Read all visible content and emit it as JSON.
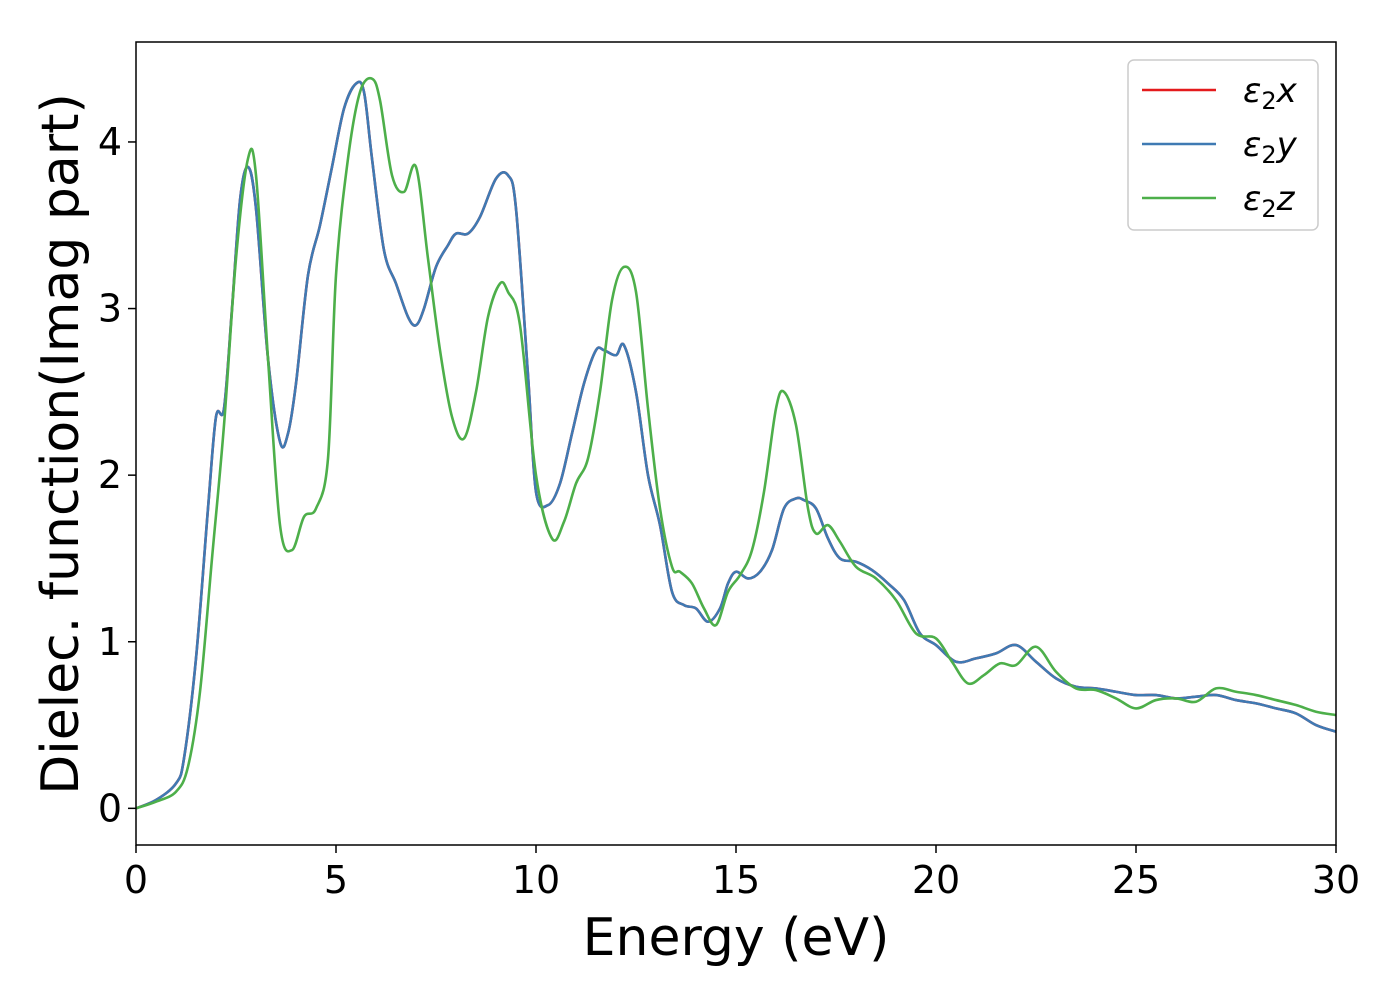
{
  "chart_data": {
    "type": "line",
    "xlabel": "Energy (eV)",
    "ylabel": "Dielec. function(Imag part)",
    "xlim": [
      0,
      30
    ],
    "ylim": [
      -0.22,
      4.6
    ],
    "xticks": [
      0,
      5,
      10,
      15,
      20,
      25,
      30
    ],
    "yticks": [
      0,
      1,
      2,
      3,
      4
    ],
    "grid": false,
    "legend_position": "top-right",
    "series": [
      {
        "name": "ε2x",
        "color": "#e41a1c",
        "x": [
          0,
          0.5,
          1.0,
          1.2,
          1.5,
          1.8,
          2.0,
          2.2,
          2.4,
          2.6,
          2.8,
          3.0,
          3.3,
          3.6,
          3.8,
          4.0,
          4.3,
          4.6,
          4.9,
          5.2,
          5.5,
          5.7,
          5.9,
          6.2,
          6.5,
          6.8,
          7.0,
          7.2,
          7.5,
          7.8,
          8.0,
          8.3,
          8.6,
          9.0,
          9.3,
          9.5,
          9.8,
          10.0,
          10.3,
          10.6,
          10.9,
          11.2,
          11.5,
          11.7,
          12.0,
          12.2,
          12.5,
          12.8,
          13.1,
          13.4,
          13.7,
          14.0,
          14.3,
          14.6,
          14.8,
          15.0,
          15.3,
          15.6,
          15.9,
          16.2,
          16.5,
          16.7,
          17.0,
          17.3,
          17.6,
          18.0,
          18.4,
          18.8,
          19.2,
          19.6,
          20.0,
          20.5,
          21.0,
          21.5,
          22.0,
          22.5,
          23.0,
          23.5,
          24.0,
          24.5,
          25.0,
          25.5,
          26.0,
          26.5,
          27.0,
          27.5,
          28.0,
          28.5,
          29.0,
          29.5,
          30.0
        ],
        "values": [
          0.0,
          0.05,
          0.15,
          0.3,
          0.9,
          1.8,
          2.35,
          2.4,
          3.0,
          3.65,
          3.85,
          3.6,
          2.7,
          2.2,
          2.25,
          2.55,
          3.2,
          3.5,
          3.85,
          4.2,
          4.35,
          4.3,
          3.9,
          3.35,
          3.15,
          2.95,
          2.9,
          3.0,
          3.25,
          3.38,
          3.45,
          3.45,
          3.55,
          3.78,
          3.8,
          3.6,
          2.6,
          1.9,
          1.82,
          1.95,
          2.25,
          2.55,
          2.75,
          2.75,
          2.72,
          2.78,
          2.5,
          2.0,
          1.7,
          1.3,
          1.22,
          1.2,
          1.12,
          1.2,
          1.35,
          1.42,
          1.38,
          1.42,
          1.55,
          1.8,
          1.86,
          1.85,
          1.8,
          1.62,
          1.5,
          1.48,
          1.43,
          1.35,
          1.25,
          1.05,
          0.98,
          0.88,
          0.9,
          0.93,
          0.98,
          0.88,
          0.78,
          0.73,
          0.72,
          0.7,
          0.68,
          0.68,
          0.66,
          0.67,
          0.68,
          0.65,
          0.63,
          0.6,
          0.57,
          0.5,
          0.46
        ]
      },
      {
        "name": "ε2y",
        "color": "#3f7ab3",
        "x": [
          0,
          0.5,
          1.0,
          1.2,
          1.5,
          1.8,
          2.0,
          2.2,
          2.4,
          2.6,
          2.8,
          3.0,
          3.3,
          3.6,
          3.8,
          4.0,
          4.3,
          4.6,
          4.9,
          5.2,
          5.5,
          5.7,
          5.9,
          6.2,
          6.5,
          6.8,
          7.0,
          7.2,
          7.5,
          7.8,
          8.0,
          8.3,
          8.6,
          9.0,
          9.3,
          9.5,
          9.8,
          10.0,
          10.3,
          10.6,
          10.9,
          11.2,
          11.5,
          11.7,
          12.0,
          12.2,
          12.5,
          12.8,
          13.1,
          13.4,
          13.7,
          14.0,
          14.3,
          14.6,
          14.8,
          15.0,
          15.3,
          15.6,
          15.9,
          16.2,
          16.5,
          16.7,
          17.0,
          17.3,
          17.6,
          18.0,
          18.4,
          18.8,
          19.2,
          19.6,
          20.0,
          20.5,
          21.0,
          21.5,
          22.0,
          22.5,
          23.0,
          23.5,
          24.0,
          24.5,
          25.0,
          25.5,
          26.0,
          26.5,
          27.0,
          27.5,
          28.0,
          28.5,
          29.0,
          29.5,
          30.0
        ],
        "values": [
          0.0,
          0.05,
          0.15,
          0.3,
          0.9,
          1.8,
          2.35,
          2.4,
          3.0,
          3.65,
          3.85,
          3.6,
          2.7,
          2.2,
          2.25,
          2.55,
          3.2,
          3.5,
          3.85,
          4.2,
          4.35,
          4.3,
          3.9,
          3.35,
          3.15,
          2.95,
          2.9,
          3.0,
          3.25,
          3.38,
          3.45,
          3.45,
          3.55,
          3.78,
          3.8,
          3.6,
          2.6,
          1.9,
          1.82,
          1.95,
          2.25,
          2.55,
          2.75,
          2.75,
          2.72,
          2.78,
          2.5,
          2.0,
          1.7,
          1.3,
          1.22,
          1.2,
          1.12,
          1.2,
          1.35,
          1.42,
          1.38,
          1.42,
          1.55,
          1.8,
          1.86,
          1.85,
          1.8,
          1.62,
          1.5,
          1.48,
          1.43,
          1.35,
          1.25,
          1.05,
          0.98,
          0.88,
          0.9,
          0.93,
          0.98,
          0.88,
          0.78,
          0.73,
          0.72,
          0.7,
          0.68,
          0.68,
          0.66,
          0.67,
          0.68,
          0.65,
          0.63,
          0.6,
          0.57,
          0.5,
          0.46
        ]
      },
      {
        "name": "ε2z",
        "color": "#4daf4a",
        "x": [
          0,
          0.5,
          1.0,
          1.3,
          1.6,
          1.9,
          2.2,
          2.5,
          2.8,
          3.0,
          3.3,
          3.6,
          3.9,
          4.2,
          4.5,
          4.8,
          5.0,
          5.3,
          5.6,
          5.9,
          6.1,
          6.4,
          6.7,
          7.0,
          7.3,
          7.6,
          7.9,
          8.2,
          8.5,
          8.8,
          9.1,
          9.3,
          9.6,
          10.0,
          10.4,
          10.7,
          11.0,
          11.3,
          11.6,
          11.9,
          12.2,
          12.5,
          12.8,
          13.1,
          13.4,
          13.6,
          13.9,
          14.2,
          14.5,
          14.8,
          15.1,
          15.4,
          15.7,
          16.0,
          16.2,
          16.5,
          16.8,
          17.0,
          17.3,
          17.6,
          18.0,
          18.5,
          19.0,
          19.5,
          20.0,
          20.4,
          20.8,
          21.2,
          21.6,
          22.0,
          22.5,
          23.0,
          23.5,
          24.0,
          24.5,
          25.0,
          25.5,
          26.0,
          26.5,
          27.0,
          27.5,
          28.0,
          28.5,
          29.0,
          29.5,
          30.0
        ],
        "values": [
          0.0,
          0.04,
          0.1,
          0.25,
          0.7,
          1.5,
          2.3,
          3.3,
          3.9,
          3.8,
          2.7,
          1.7,
          1.55,
          1.75,
          1.8,
          2.1,
          3.2,
          3.9,
          4.3,
          4.38,
          4.25,
          3.8,
          3.7,
          3.85,
          3.3,
          2.75,
          2.35,
          2.22,
          2.5,
          2.95,
          3.15,
          3.1,
          2.9,
          2.0,
          1.62,
          1.72,
          1.95,
          2.1,
          2.5,
          3.05,
          3.25,
          3.1,
          2.4,
          1.8,
          1.45,
          1.42,
          1.35,
          1.2,
          1.1,
          1.3,
          1.4,
          1.55,
          1.9,
          2.4,
          2.5,
          2.3,
          1.8,
          1.65,
          1.7,
          1.6,
          1.45,
          1.38,
          1.25,
          1.05,
          1.02,
          0.88,
          0.75,
          0.8,
          0.87,
          0.86,
          0.97,
          0.82,
          0.72,
          0.71,
          0.66,
          0.6,
          0.65,
          0.66,
          0.64,
          0.72,
          0.7,
          0.68,
          0.65,
          0.62,
          0.58,
          0.56
        ]
      }
    ]
  }
}
